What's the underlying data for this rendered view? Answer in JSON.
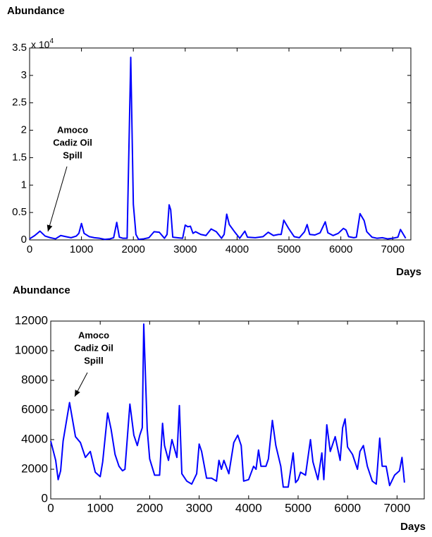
{
  "chart_data": [
    {
      "type": "line",
      "title": "Abundance",
      "xlabel": "Days",
      "y_exponent": {
        "base": "x 10",
        "power": "4"
      },
      "annotation": [
        "Amoco",
        "Cadiz Oil",
        "Spill"
      ],
      "color": "#0000ff",
      "xlim": [
        0,
        7350
      ],
      "xticks": [
        0,
        1000,
        2000,
        3000,
        4000,
        5000,
        6000,
        7000
      ],
      "ylim": [
        0,
        35000
      ],
      "yticks": [
        {
          "value": 0,
          "label": "0"
        },
        {
          "value": 5000,
          "label": "0.5"
        },
        {
          "value": 10000,
          "label": "1"
        },
        {
          "value": 15000,
          "label": "1.5"
        },
        {
          "value": 20000,
          "label": "2"
        },
        {
          "value": 25000,
          "label": "2.5"
        },
        {
          "value": 30000,
          "label": "3"
        },
        {
          "value": 35000,
          "label": "3.5"
        }
      ],
      "grid": false,
      "x": [
        0,
        100,
        200,
        300,
        400,
        500,
        600,
        700,
        800,
        900,
        950,
        1000,
        1050,
        1150,
        1250,
        1350,
        1450,
        1550,
        1620,
        1680,
        1730,
        1800,
        1880,
        1950,
        2000,
        2050,
        2100,
        2200,
        2300,
        2400,
        2500,
        2600,
        2650,
        2690,
        2720,
        2760,
        2850,
        2950,
        3000,
        3050,
        3100,
        3150,
        3200,
        3300,
        3400,
        3500,
        3600,
        3700,
        3750,
        3800,
        3850,
        3950,
        4050,
        4150,
        4200,
        4350,
        4500,
        4600,
        4700,
        4800,
        4850,
        4900,
        5000,
        5100,
        5200,
        5300,
        5350,
        5400,
        5500,
        5600,
        5700,
        5750,
        5850,
        5950,
        6050,
        6100,
        6150,
        6250,
        6300,
        6370,
        6450,
        6500,
        6600,
        6700,
        6800,
        6900,
        7000,
        7100,
        7150,
        7250
      ],
      "values": [
        200,
        800,
        1600,
        700,
        400,
        200,
        800,
        600,
        400,
        700,
        1200,
        3000,
        1200,
        600,
        400,
        300,
        100,
        200,
        400,
        3200,
        500,
        300,
        300,
        33300,
        6500,
        1000,
        100,
        200,
        400,
        1500,
        1400,
        300,
        1000,
        6400,
        5500,
        500,
        400,
        300,
        2700,
        2400,
        2500,
        1200,
        1500,
        1000,
        800,
        2000,
        1500,
        300,
        1000,
        4700,
        2800,
        1500,
        300,
        1600,
        500,
        400,
        600,
        1400,
        800,
        1000,
        1000,
        3600,
        2000,
        600,
        400,
        1500,
        2800,
        1000,
        900,
        1300,
        3300,
        1300,
        800,
        1200,
        2100,
        1800,
        600,
        400,
        500,
        4800,
        3500,
        1500,
        500,
        300,
        400,
        200,
        300,
        500,
        1900,
        300
      ]
    },
    {
      "type": "line",
      "title": "Abundance",
      "xlabel": "Days",
      "annotation": [
        "Amoco",
        "Cadiz Oil",
        "Spill"
      ],
      "color": "#0000ff",
      "xlim": [
        0,
        7550
      ],
      "xticks": [
        0,
        1000,
        2000,
        3000,
        4000,
        5000,
        6000,
        7000
      ],
      "ylim": [
        0,
        12000
      ],
      "yticks": [
        0,
        2000,
        4000,
        6000,
        8000,
        10000,
        12000
      ],
      "grid": false,
      "x": [
        0,
        100,
        150,
        200,
        250,
        380,
        500,
        600,
        700,
        800,
        900,
        1000,
        1050,
        1150,
        1220,
        1300,
        1380,
        1450,
        1500,
        1550,
        1600,
        1680,
        1750,
        1800,
        1850,
        1880,
        1950,
        2000,
        2100,
        2200,
        2260,
        2300,
        2380,
        2450,
        2550,
        2600,
        2650,
        2750,
        2850,
        2950,
        3000,
        3050,
        3150,
        3250,
        3350,
        3400,
        3450,
        3500,
        3600,
        3700,
        3780,
        3850,
        3900,
        4000,
        4100,
        4150,
        4200,
        4250,
        4350,
        4400,
        4480,
        4550,
        4650,
        4700,
        4800,
        4900,
        4950,
        5000,
        5050,
        5150,
        5250,
        5300,
        5400,
        5480,
        5520,
        5580,
        5650,
        5750,
        5850,
        5900,
        5950,
        6000,
        6100,
        6200,
        6250,
        6320,
        6400,
        6500,
        6580,
        6650,
        6700,
        6780,
        6850,
        6950,
        7050,
        7100,
        7150
      ],
      "values": [
        3900,
        2600,
        1300,
        1900,
        3900,
        6500,
        4200,
        3800,
        2800,
        3200,
        1800,
        1500,
        2500,
        5800,
        4700,
        3000,
        2200,
        1900,
        2000,
        4200,
        6400,
        4300,
        3600,
        4300,
        4800,
        11800,
        4700,
        2700,
        1600,
        1600,
        5100,
        3600,
        2600,
        4000,
        2800,
        6300,
        1700,
        1200,
        1000,
        1700,
        3700,
        3200,
        1400,
        1400,
        1200,
        2600,
        2000,
        2600,
        1700,
        3800,
        4300,
        3600,
        1200,
        1300,
        2200,
        2000,
        3300,
        2200,
        2200,
        2700,
        5300,
        3600,
        2200,
        800,
        800,
        3100,
        1100,
        1300,
        1800,
        1600,
        4000,
        2500,
        1300,
        3100,
        1300,
        5000,
        3200,
        4200,
        2600,
        4800,
        5400,
        3500,
        3000,
        2000,
        3200,
        3600,
        2200,
        1200,
        1000,
        4100,
        2200,
        2200,
        900,
        1600,
        1900,
        2800,
        1100
      ]
    }
  ]
}
